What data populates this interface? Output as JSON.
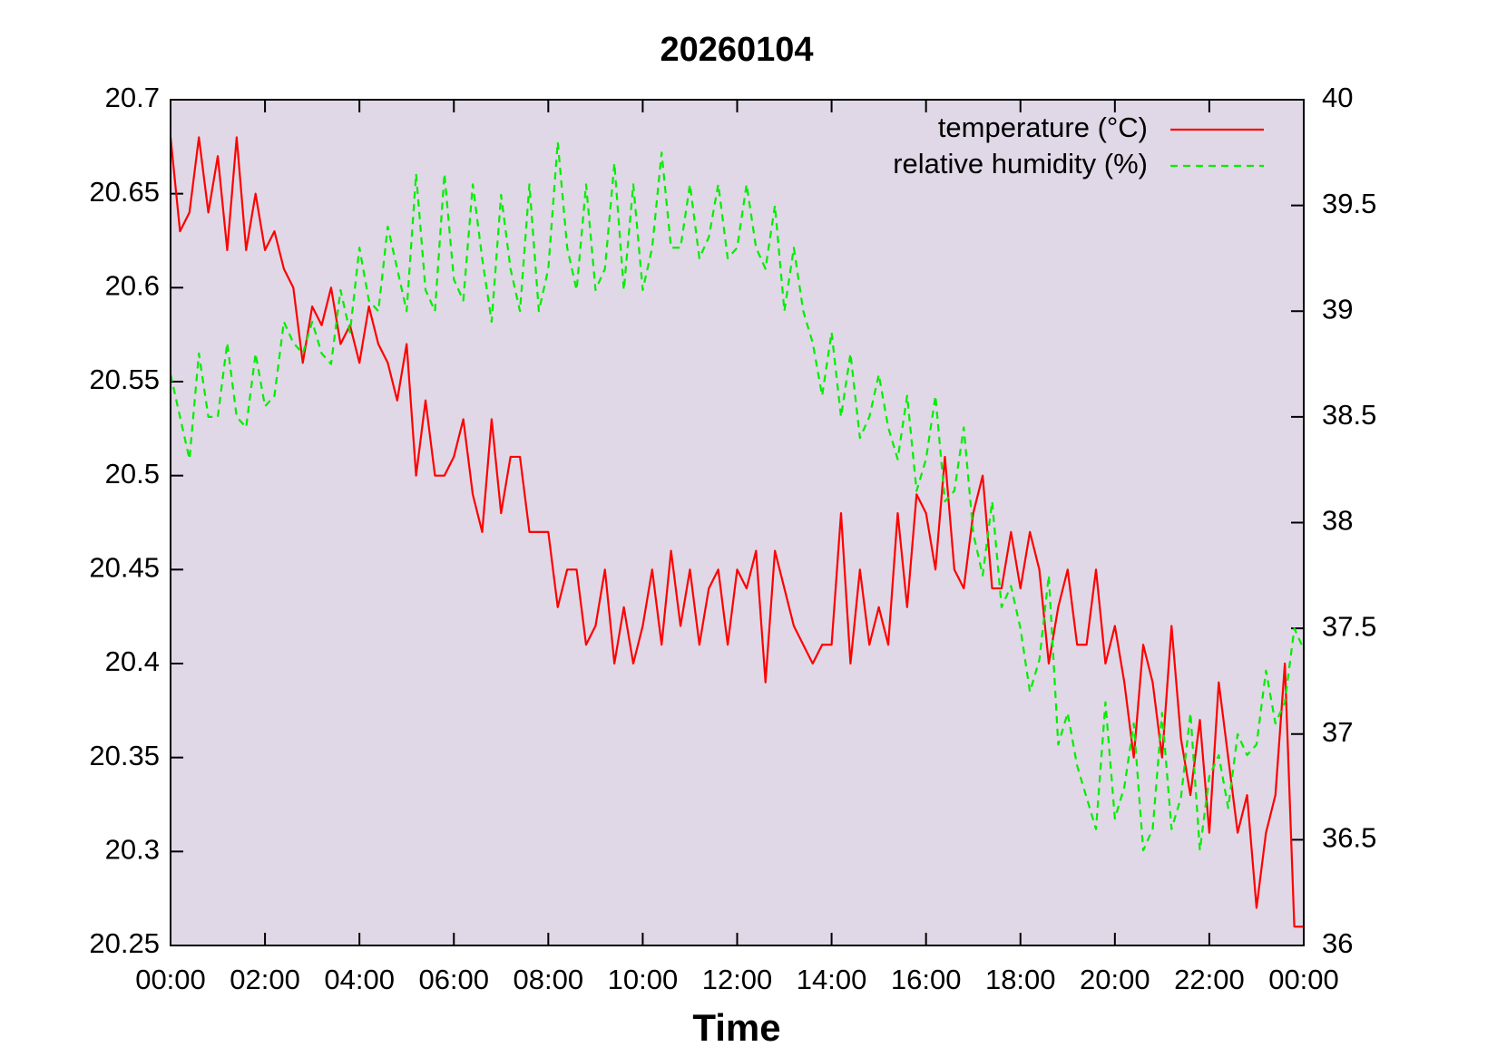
{
  "chart_data": {
    "type": "line",
    "title": "20260104",
    "xlabel": "Time",
    "xlim": [
      0,
      24
    ],
    "xticks": [
      {
        "value": 0,
        "label": "00:00"
      },
      {
        "value": 2,
        "label": "02:00"
      },
      {
        "value": 4,
        "label": "04:00"
      },
      {
        "value": 6,
        "label": "06:00"
      },
      {
        "value": 8,
        "label": "08:00"
      },
      {
        "value": 10,
        "label": "10:00"
      },
      {
        "value": 12,
        "label": "12:00"
      },
      {
        "value": 14,
        "label": "14:00"
      },
      {
        "value": 16,
        "label": "16:00"
      },
      {
        "value": 18,
        "label": "18:00"
      },
      {
        "value": 20,
        "label": "20:00"
      },
      {
        "value": 22,
        "label": "22:00"
      },
      {
        "value": 24,
        "label": "00:00"
      }
    ],
    "ylim": [
      20.25,
      20.7
    ],
    "yticks": [
      20.25,
      20.3,
      20.35,
      20.4,
      20.45,
      20.5,
      20.55,
      20.6,
      20.65,
      20.7
    ],
    "y2lim": [
      36,
      40
    ],
    "y2ticks": [
      36,
      36.5,
      37,
      37.5,
      38,
      38.5,
      39,
      39.5,
      40
    ],
    "grid": false,
    "legend": "upper right",
    "plot_background": "#e0d8e6",
    "x": [
      0,
      0.2,
      0.4,
      0.6,
      0.8,
      1,
      1.2,
      1.4,
      1.6,
      1.8,
      2,
      2.2,
      2.4,
      2.6,
      2.8,
      3,
      3.2,
      3.4,
      3.6,
      3.8,
      4,
      4.2,
      4.4,
      4.6,
      4.8,
      5,
      5.2,
      5.4,
      5.6,
      5.8,
      6,
      6.2,
      6.4,
      6.6,
      6.8,
      7,
      7.2,
      7.4,
      7.6,
      7.8,
      8,
      8.2,
      8.4,
      8.6,
      8.8,
      9,
      9.2,
      9.4,
      9.6,
      9.8,
      10,
      10.2,
      10.4,
      10.6,
      10.8,
      11,
      11.2,
      11.4,
      11.6,
      11.8,
      12,
      12.2,
      12.4,
      12.6,
      12.8,
      13,
      13.2,
      13.4,
      13.6,
      13.8,
      14,
      14.2,
      14.4,
      14.6,
      14.8,
      15,
      15.2,
      15.4,
      15.6,
      15.8,
      16,
      16.2,
      16.4,
      16.6,
      16.8,
      17,
      17.2,
      17.4,
      17.6,
      17.8,
      18,
      18.2,
      18.4,
      18.6,
      18.8,
      19,
      19.2,
      19.4,
      19.6,
      19.8,
      20,
      20.2,
      20.4,
      20.6,
      20.8,
      21,
      21.2,
      21.4,
      21.6,
      21.8,
      22,
      22.2,
      22.4,
      22.6,
      22.8,
      23,
      23.2,
      23.4,
      23.6,
      23.8,
      24
    ],
    "series": [
      {
        "name": "temperature (°C)",
        "color": "#ff0000",
        "linestyle": "solid",
        "axis": "y",
        "values": [
          20.68,
          20.63,
          20.64,
          20.68,
          20.64,
          20.67,
          20.62,
          20.68,
          20.62,
          20.65,
          20.62,
          20.63,
          20.61,
          20.6,
          20.56,
          20.59,
          20.58,
          20.6,
          20.57,
          20.58,
          20.56,
          20.59,
          20.57,
          20.56,
          20.54,
          20.57,
          20.5,
          20.54,
          20.5,
          20.5,
          20.51,
          20.53,
          20.49,
          20.47,
          20.53,
          20.48,
          20.51,
          20.51,
          20.47,
          20.47,
          20.47,
          20.43,
          20.45,
          20.45,
          20.41,
          20.42,
          20.45,
          20.4,
          20.43,
          20.4,
          20.42,
          20.45,
          20.41,
          20.46,
          20.42,
          20.45,
          20.41,
          20.44,
          20.45,
          20.41,
          20.45,
          20.44,
          20.46,
          20.39,
          20.46,
          20.44,
          20.42,
          20.41,
          20.4,
          20.41,
          20.41,
          20.48,
          20.4,
          20.45,
          20.41,
          20.43,
          20.41,
          20.48,
          20.43,
          20.49,
          20.48,
          20.45,
          20.51,
          20.45,
          20.44,
          20.48,
          20.5,
          20.44,
          20.44,
          20.47,
          20.44,
          20.47,
          20.45,
          20.4,
          20.43,
          20.45,
          20.41,
          20.41,
          20.45,
          20.4,
          20.42,
          20.39,
          20.35,
          20.41,
          20.39,
          20.35,
          20.42,
          20.36,
          20.33,
          20.37,
          20.31,
          20.39,
          20.35,
          20.31,
          20.33,
          20.27,
          20.31,
          20.33,
          20.4,
          20.26,
          20.26
        ]
      },
      {
        "name": "relative humidity (%)",
        "color": "#00ee00",
        "linestyle": "dashed",
        "axis": "y2",
        "values": [
          38.7,
          38.5,
          38.3,
          38.8,
          38.5,
          38.5,
          38.85,
          38.5,
          38.45,
          38.8,
          38.55,
          38.6,
          38.95,
          38.85,
          38.8,
          38.95,
          38.8,
          38.75,
          39.1,
          38.9,
          39.3,
          39.05,
          39,
          39.4,
          39.2,
          39,
          39.65,
          39.1,
          39,
          39.65,
          39.15,
          39.05,
          39.6,
          39.25,
          38.95,
          39.55,
          39.2,
          39,
          39.6,
          39,
          39.2,
          39.8,
          39.3,
          39.1,
          39.6,
          39.1,
          39.2,
          39.7,
          39.1,
          39.6,
          39.1,
          39.3,
          39.75,
          39.3,
          39.3,
          39.6,
          39.25,
          39.35,
          39.6,
          39.25,
          39.3,
          39.6,
          39.3,
          39.2,
          39.5,
          39,
          39.3,
          39,
          38.85,
          38.6,
          38.9,
          38.5,
          38.8,
          38.4,
          38.5,
          38.7,
          38.45,
          38.3,
          38.6,
          38.15,
          38.3,
          38.6,
          38.1,
          38.15,
          38.45,
          37.95,
          37.75,
          38.1,
          37.6,
          37.7,
          37.5,
          37.2,
          37.35,
          37.75,
          36.95,
          37.1,
          36.85,
          36.7,
          36.55,
          37.15,
          36.6,
          36.75,
          37.05,
          36.45,
          36.55,
          37.1,
          36.55,
          36.7,
          37.1,
          36.45,
          36.8,
          36.9,
          36.65,
          37,
          36.9,
          36.95,
          37.3,
          37.05,
          37.15,
          37.5,
          37.4
        ]
      }
    ]
  }
}
